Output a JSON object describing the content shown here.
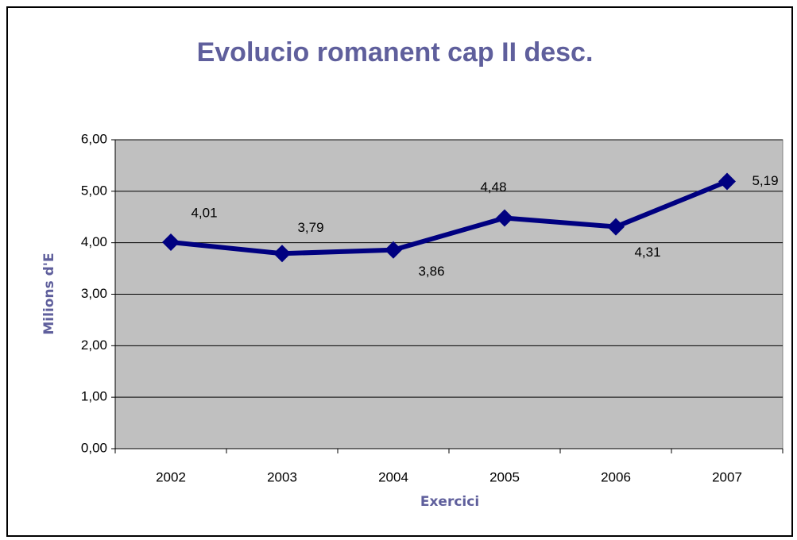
{
  "chart_data": {
    "type": "line",
    "title": "Evolucio romanent cap II desc.",
    "x_label": "Exercici",
    "y_label": "Milions d'E",
    "categories": [
      "2002",
      "2003",
      "2004",
      "2005",
      "2006",
      "2007"
    ],
    "values": [
      4.01,
      3.79,
      3.86,
      4.48,
      4.31,
      5.19
    ],
    "value_labels": [
      "4,01",
      "3,79",
      "3,86",
      "4,48",
      "4,31",
      "5,19"
    ],
    "color": "#000080",
    "ylim": [
      0,
      6
    ],
    "yticks": [
      {
        "value": 0,
        "label": "0,00"
      },
      {
        "value": 1,
        "label": "1,00"
      },
      {
        "value": 2,
        "label": "2,00"
      },
      {
        "value": 3,
        "label": "3,00"
      },
      {
        "value": 4,
        "label": "4,00"
      },
      {
        "value": 5,
        "label": "5,00"
      },
      {
        "value": 6,
        "label": "6,00"
      }
    ],
    "grid": true
  }
}
